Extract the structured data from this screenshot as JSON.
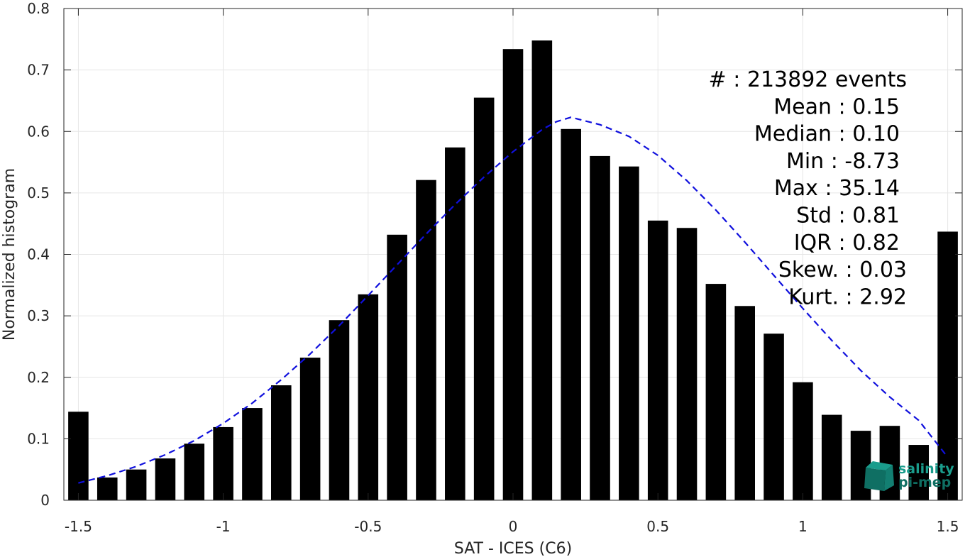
{
  "chart_data": {
    "type": "bar",
    "xlabel": "SAT - ICES (C6)",
    "ylabel": "Normalized histogram",
    "xlim": [
      -1.55,
      1.55
    ],
    "ylim": [
      0,
      0.8
    ],
    "xticks": [
      -1.5,
      -1,
      -0.5,
      0,
      0.5,
      1,
      1.5
    ],
    "xtick_labels": [
      "-1.5",
      "-1",
      "-0.5",
      "0",
      "0.5",
      "1",
      "1.5"
    ],
    "yticks": [
      0,
      0.1,
      0.2,
      0.3,
      0.4,
      0.5,
      0.6,
      0.7,
      0.8
    ],
    "ytick_labels": [
      "0",
      "0.1",
      "0.2",
      "0.3",
      "0.4",
      "0.5",
      "0.6",
      "0.7",
      "0.8"
    ],
    "grid": true,
    "bars": {
      "color": "#000000",
      "x": [
        -1.5,
        -1.4,
        -1.3,
        -1.2,
        -1.1,
        -1.0,
        -0.9,
        -0.8,
        -0.7,
        -0.6,
        -0.5,
        -0.4,
        -0.3,
        -0.2,
        -0.1,
        0.0,
        0.1,
        0.2,
        0.3,
        0.4,
        0.5,
        0.6,
        0.7,
        0.8,
        0.9,
        1.0,
        1.1,
        1.2,
        1.3,
        1.4,
        1.5
      ],
      "values": [
        0.144,
        0.037,
        0.05,
        0.068,
        0.092,
        0.119,
        0.15,
        0.187,
        0.232,
        0.293,
        0.335,
        0.432,
        0.521,
        0.574,
        0.655,
        0.734,
        0.748,
        0.604,
        0.56,
        0.543,
        0.455,
        0.443,
        0.352,
        0.316,
        0.271,
        0.192,
        0.139,
        0.113,
        0.121,
        0.09,
        0.437
      ]
    },
    "fit": {
      "style": "dashed",
      "color": "#1010dd",
      "x": [
        -1.5,
        -1.4,
        -1.3,
        -1.2,
        -1.1,
        -1.0,
        -0.9,
        -0.8,
        -0.7,
        -0.6,
        -0.5,
        -0.4,
        -0.3,
        -0.2,
        -0.1,
        0.0,
        0.1,
        0.15,
        0.2,
        0.3,
        0.4,
        0.5,
        0.6,
        0.7,
        0.8,
        0.9,
        1.0,
        1.1,
        1.2,
        1.3,
        1.4,
        1.5
      ],
      "y": [
        0.028,
        0.04,
        0.055,
        0.074,
        0.097,
        0.125,
        0.158,
        0.196,
        0.238,
        0.284,
        0.333,
        0.383,
        0.433,
        0.481,
        0.526,
        0.567,
        0.603,
        0.616,
        0.623,
        0.611,
        0.592,
        0.561,
        0.52,
        0.472,
        0.42,
        0.366,
        0.312,
        0.26,
        0.211,
        0.168,
        0.13,
        0.07
      ]
    },
    "stats": [
      {
        "label": "#  :",
        "value": "213892 events"
      },
      {
        "label": "Mean :",
        "value": "0.15"
      },
      {
        "label": "Median :",
        "value": "0.10"
      },
      {
        "label": "Min :",
        "value": "-8.73"
      },
      {
        "label": "Max :",
        "value": "35.14"
      },
      {
        "label": "Std :",
        "value": "0.81"
      },
      {
        "label": "IQR :",
        "value": "0.82"
      },
      {
        "label": "Skew. :",
        "value": "0.03"
      },
      {
        "label": "Kurt. :",
        "value": "2.92"
      }
    ],
    "logo": {
      "line1": "salinity",
      "line2": "pi-mep",
      "color": "#1a9c8c"
    }
  }
}
